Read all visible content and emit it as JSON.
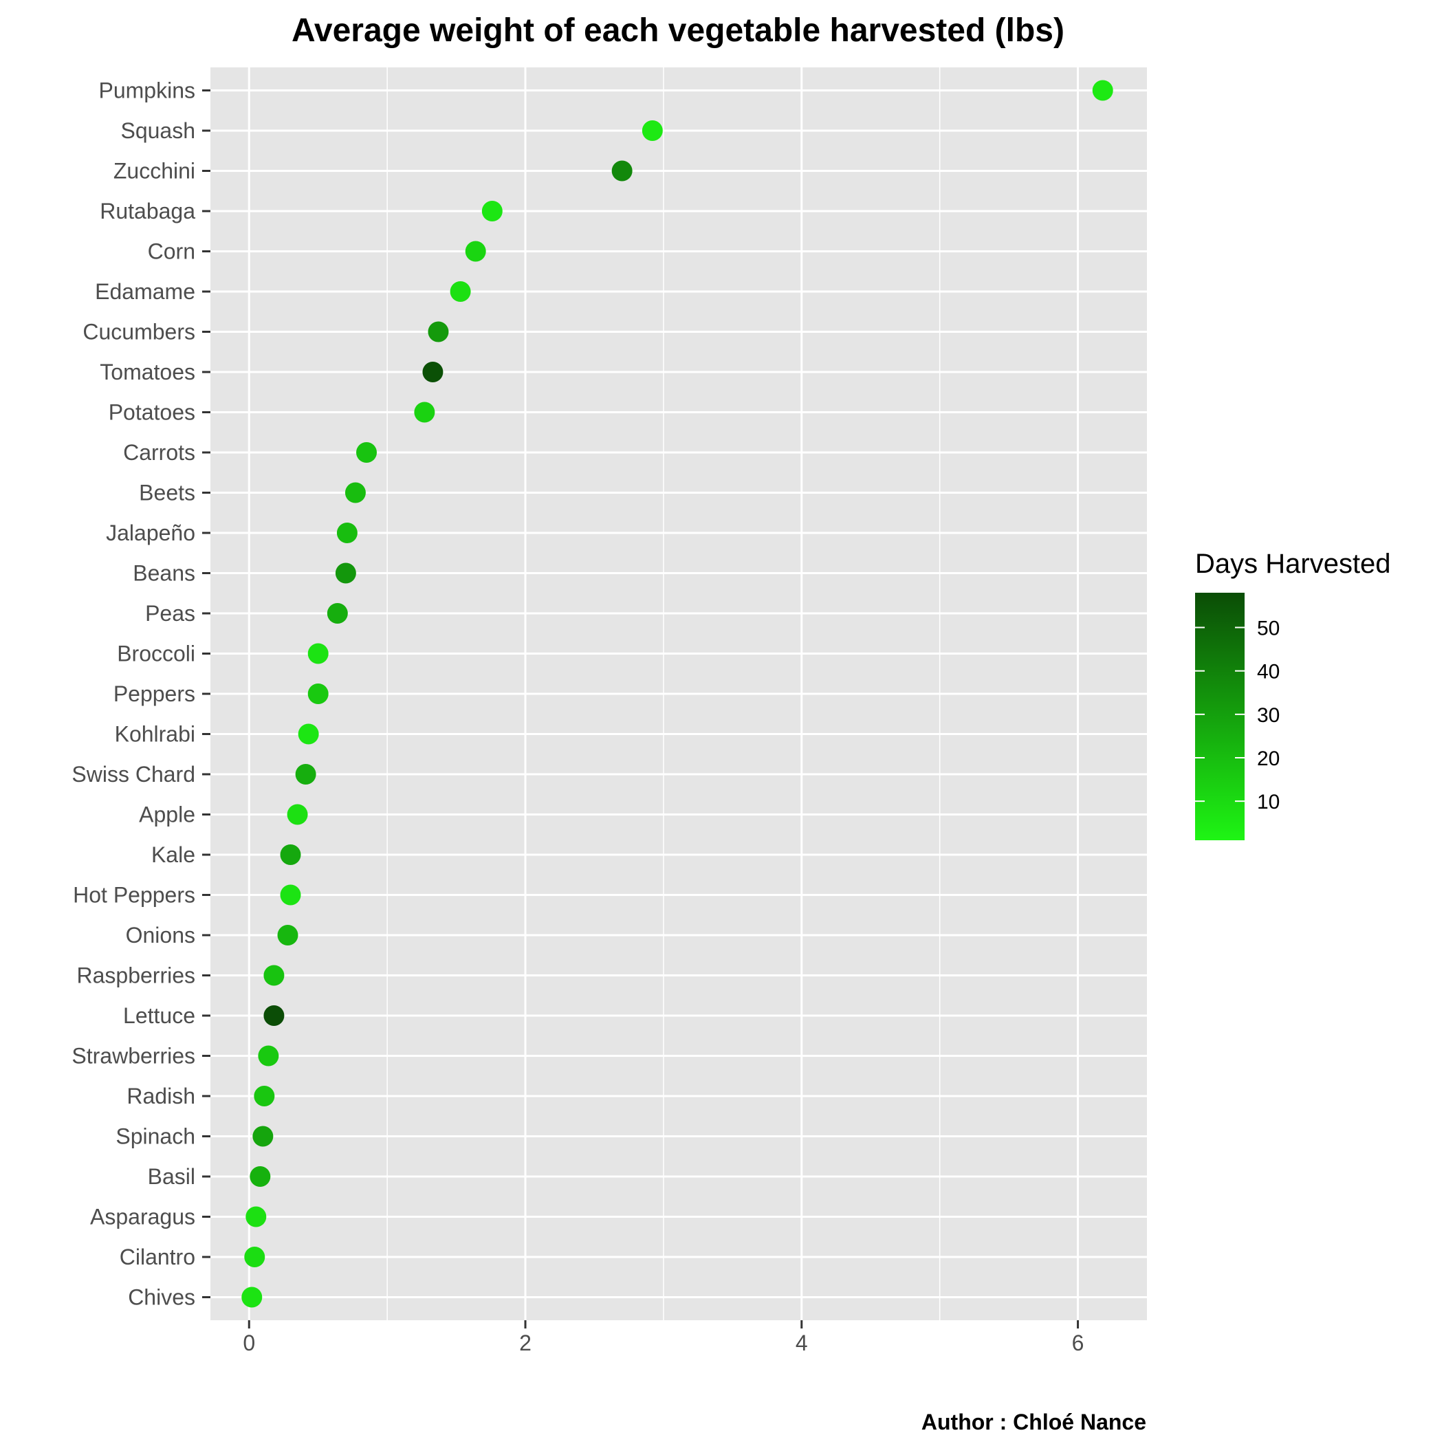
{
  "chart_data": {
    "type": "scatter",
    "title": "Average weight of each vegetable harvested (lbs)",
    "xlabel": "",
    "ylabel": "",
    "xlim": [
      -0.28,
      6.5
    ],
    "x_ticks": [
      0,
      2,
      4,
      6
    ],
    "grid": true,
    "legend_position": "right",
    "color_scale": {
      "title": "Days Harvested",
      "ticks": [
        10,
        20,
        30,
        40,
        50
      ],
      "min": 1,
      "max": 58,
      "low_color": "#1EF514",
      "high_color": "#0B4D06"
    },
    "caption": "Author : Chloé Nance",
    "points": [
      {
        "label": "Pumpkins",
        "value": 6.18,
        "days": 5
      },
      {
        "label": "Squash",
        "value": 2.92,
        "days": 5
      },
      {
        "label": "Zucchini",
        "value": 2.7,
        "days": 38
      },
      {
        "label": "Rutabaga",
        "value": 1.76,
        "days": 6
      },
      {
        "label": "Corn",
        "value": 1.64,
        "days": 12
      },
      {
        "label": "Edamame",
        "value": 1.53,
        "days": 8
      },
      {
        "label": "Cucumbers",
        "value": 1.37,
        "days": 32
      },
      {
        "label": "Tomatoes",
        "value": 1.33,
        "days": 57
      },
      {
        "label": "Potatoes",
        "value": 1.27,
        "days": 13
      },
      {
        "label": "Carrots",
        "value": 0.85,
        "days": 18
      },
      {
        "label": "Beets",
        "value": 0.77,
        "days": 20
      },
      {
        "label": "Jalapeño",
        "value": 0.71,
        "days": 20
      },
      {
        "label": "Beans",
        "value": 0.7,
        "days": 33
      },
      {
        "label": "Peas",
        "value": 0.64,
        "days": 25
      },
      {
        "label": "Broccoli",
        "value": 0.5,
        "days": 7
      },
      {
        "label": "Peppers",
        "value": 0.5,
        "days": 16
      },
      {
        "label": "Kohlrabi",
        "value": 0.43,
        "days": 6
      },
      {
        "label": "Swiss Chard",
        "value": 0.41,
        "days": 25
      },
      {
        "label": "Apple",
        "value": 0.35,
        "days": 8
      },
      {
        "label": "Kale",
        "value": 0.3,
        "days": 27
      },
      {
        "label": "Hot Peppers",
        "value": 0.3,
        "days": 7
      },
      {
        "label": "Onions",
        "value": 0.28,
        "days": 22
      },
      {
        "label": "Raspberries",
        "value": 0.18,
        "days": 18
      },
      {
        "label": "Lettuce",
        "value": 0.18,
        "days": 58
      },
      {
        "label": "Strawberries",
        "value": 0.14,
        "days": 16
      },
      {
        "label": "Radish",
        "value": 0.11,
        "days": 17
      },
      {
        "label": "Spinach",
        "value": 0.1,
        "days": 28
      },
      {
        "label": "Basil",
        "value": 0.08,
        "days": 24
      },
      {
        "label": "Asparagus",
        "value": 0.05,
        "days": 8
      },
      {
        "label": "Cilantro",
        "value": 0.04,
        "days": 9
      },
      {
        "label": "Chives",
        "value": 0.02,
        "days": 7
      }
    ]
  }
}
